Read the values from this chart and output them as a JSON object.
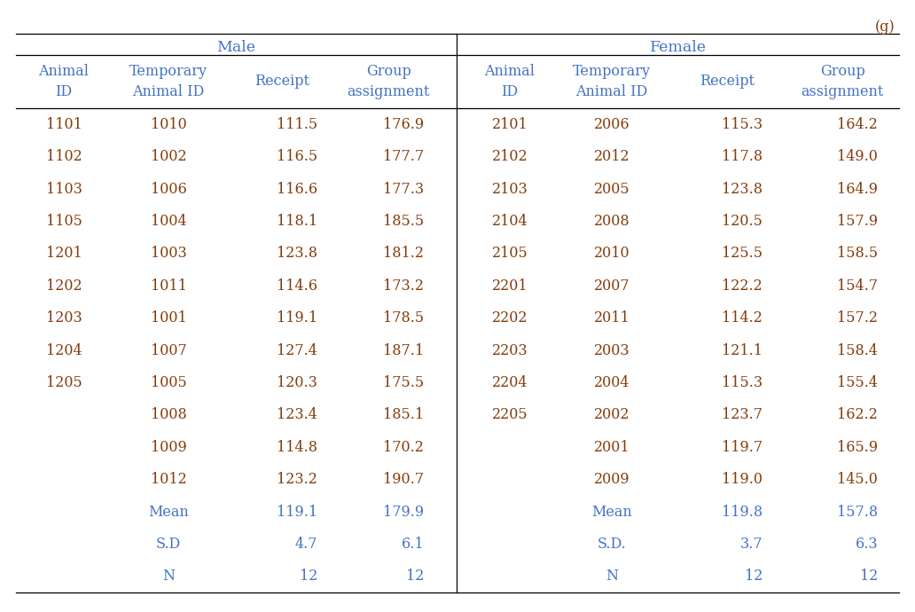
{
  "unit_label": "(g)",
  "male_header": "Male",
  "female_header": "Female",
  "male_data": [
    [
      "1101",
      "1010",
      "111.5",
      "176.9"
    ],
    [
      "1102",
      "1002",
      "116.5",
      "177.7"
    ],
    [
      "1103",
      "1006",
      "116.6",
      "177.3"
    ],
    [
      "1105",
      "1004",
      "118.1",
      "185.5"
    ],
    [
      "1201",
      "1003",
      "123.8",
      "181.2"
    ],
    [
      "1202",
      "1011",
      "114.6",
      "173.2"
    ],
    [
      "1203",
      "1001",
      "119.1",
      "178.5"
    ],
    [
      "1204",
      "1007",
      "127.4",
      "187.1"
    ],
    [
      "1205",
      "1005",
      "120.3",
      "175.5"
    ],
    [
      "",
      "1008",
      "123.4",
      "185.1"
    ],
    [
      "",
      "1009",
      "114.8",
      "170.2"
    ],
    [
      "",
      "1012",
      "123.2",
      "190.7"
    ],
    [
      "",
      "Mean",
      "119.1",
      "179.9"
    ],
    [
      "",
      "S.D",
      "4.7",
      "6.1"
    ],
    [
      "",
      "N",
      "12",
      "12"
    ]
  ],
  "female_data": [
    [
      "2101",
      "2006",
      "115.3",
      "164.2"
    ],
    [
      "2102",
      "2012",
      "117.8",
      "149.0"
    ],
    [
      "2103",
      "2005",
      "123.8",
      "164.9"
    ],
    [
      "2104",
      "2008",
      "120.5",
      "157.9"
    ],
    [
      "2105",
      "2010",
      "125.5",
      "158.5"
    ],
    [
      "2201",
      "2007",
      "122.2",
      "154.7"
    ],
    [
      "2202",
      "2011",
      "114.2",
      "157.2"
    ],
    [
      "2203",
      "2003",
      "121.1",
      "158.4"
    ],
    [
      "2204",
      "2004",
      "115.3",
      "155.4"
    ],
    [
      "2205",
      "2002",
      "123.7",
      "162.2"
    ],
    [
      "",
      "2001",
      "119.7",
      "165.9"
    ],
    [
      "",
      "2009",
      "119.0",
      "145.0"
    ],
    [
      "",
      "Mean",
      "119.8",
      "157.8"
    ],
    [
      "",
      "S.D.",
      "3.7",
      "6.3"
    ],
    [
      "",
      "N",
      "12",
      "12"
    ]
  ],
  "header_color": "#4472c4",
  "data_color": "#843c0c",
  "stat_color": "#4472c4",
  "bg_color": "#ffffff",
  "line_color": "#000000",
  "font_size": 11.5,
  "header_font_size": 12.5
}
